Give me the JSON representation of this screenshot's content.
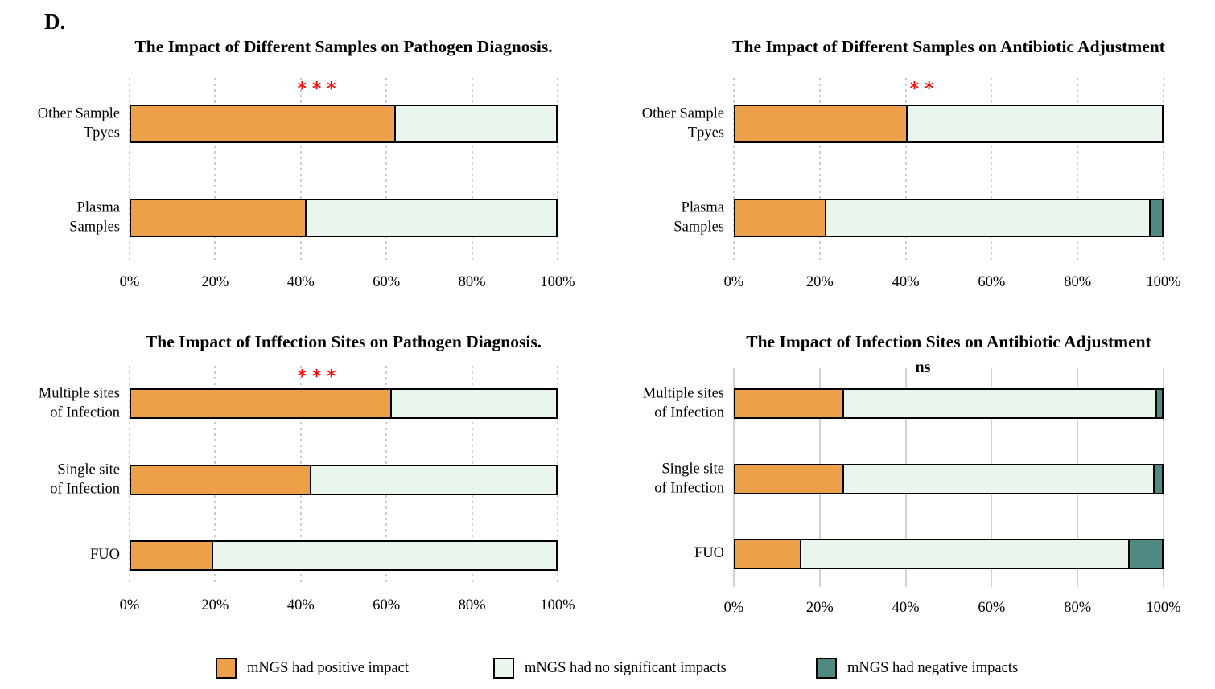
{
  "panel_label": "D.",
  "colors": {
    "positive": "#ECA04A",
    "no_impact": "#EAF6EC",
    "negative": "#4F8A82",
    "significance_red": "#FF0000",
    "significance_black": "#000000",
    "bar_border": "#000000",
    "gridline": "#CBCBCB"
  },
  "legend": {
    "position": "bottom",
    "items": [
      {
        "label": "mNGS had positive impact",
        "color_key": "positive"
      },
      {
        "label": "mNGS had no significant impacts",
        "color_key": "no_impact"
      },
      {
        "label": "mNGS had negative impacts",
        "color_key": "negative"
      }
    ]
  },
  "chart_data": [
    {
      "id": "samples-pathogen-diagnosis",
      "type": "bar",
      "orientation": "horizontal",
      "stacked": true,
      "title": "The Impact of Different Samples on Pathogen Diagnosis.",
      "significance": {
        "text": "∗∗∗",
        "style": "stars",
        "color_key": "significance_red",
        "x_pct": 44
      },
      "categories": [
        [
          "Other Sample",
          "Tpyes"
        ],
        [
          "Plasma",
          "Samples"
        ]
      ],
      "series": [
        {
          "name": "mNGS had positive impact",
          "values": [
            62,
            41
          ]
        },
        {
          "name": "mNGS had no significant impacts",
          "values": [
            38,
            59
          ]
        },
        {
          "name": "mNGS had negative impacts",
          "values": [
            0,
            0
          ]
        }
      ],
      "x_ticks": [
        "0%",
        "20%",
        "40%",
        "60%",
        "80%",
        "100%"
      ],
      "xlim": [
        0,
        100
      ],
      "grid": "dotted"
    },
    {
      "id": "samples-antibiotic-adjustment",
      "type": "bar",
      "orientation": "horizontal",
      "stacked": true,
      "title": "The Impact of Different Samples on Antibiotic Adjustment",
      "significance": {
        "text": "∗∗",
        "style": "stars",
        "color_key": "significance_red",
        "x_pct": 44
      },
      "categories": [
        [
          "Other Sample",
          "Tpyes"
        ],
        [
          "Plasma",
          "Samples"
        ]
      ],
      "series": [
        {
          "name": "mNGS had positive impact",
          "values": [
            40,
            21
          ]
        },
        {
          "name": "mNGS had no significant impacts",
          "values": [
            60,
            76
          ]
        },
        {
          "name": "mNGS had negative impacts",
          "values": [
            0,
            3
          ]
        }
      ],
      "x_ticks": [
        "0%",
        "20%",
        "40%",
        "60%",
        "80%",
        "100%"
      ],
      "xlim": [
        0,
        100
      ],
      "grid": "dotted"
    },
    {
      "id": "infection-sites-pathogen-diagnosis",
      "type": "bar",
      "orientation": "horizontal",
      "stacked": true,
      "title": "The Impact of Inffection Sites on Pathogen Diagnosis.",
      "significance": {
        "text": "∗∗∗",
        "style": "stars",
        "color_key": "significance_red",
        "x_pct": 44
      },
      "categories": [
        [
          "Multiple sites",
          "of Infection"
        ],
        [
          "Single site",
          "of Infection"
        ],
        [
          "FUO"
        ]
      ],
      "series": [
        {
          "name": "mNGS had positive impact",
          "values": [
            61,
            42,
            19
          ]
        },
        {
          "name": "mNGS had no significant impacts",
          "values": [
            39,
            58,
            81
          ]
        },
        {
          "name": "mNGS had negative impacts",
          "values": [
            0,
            0,
            0
          ]
        }
      ],
      "x_ticks": [
        "0%",
        "20%",
        "40%",
        "60%",
        "80%",
        "100%"
      ],
      "xlim": [
        0,
        100
      ],
      "grid": "dotted"
    },
    {
      "id": "infection-sites-antibiotic-adjustment",
      "type": "bar",
      "orientation": "horizontal",
      "stacked": true,
      "title": "The Impact of Infection Sites on Antibiotic Adjustment",
      "significance": {
        "text": "ns",
        "style": "ns",
        "color_key": "significance_black",
        "x_pct": 44
      },
      "categories": [
        [
          "Multiple sites",
          "of Infection"
        ],
        [
          "Single site",
          "of Infection"
        ],
        [
          "FUO"
        ]
      ],
      "series": [
        {
          "name": "mNGS had positive impact",
          "values": [
            25,
            25,
            15
          ]
        },
        {
          "name": "mNGS had no significant impacts",
          "values": [
            73.5,
            73,
            77
          ]
        },
        {
          "name": "mNGS had negative impacts",
          "values": [
            1.5,
            2,
            8
          ]
        }
      ],
      "x_ticks": [
        "0%",
        "20%",
        "40%",
        "60%",
        "80%",
        "100%"
      ],
      "xlim": [
        0,
        100
      ],
      "grid": "solid"
    }
  ]
}
